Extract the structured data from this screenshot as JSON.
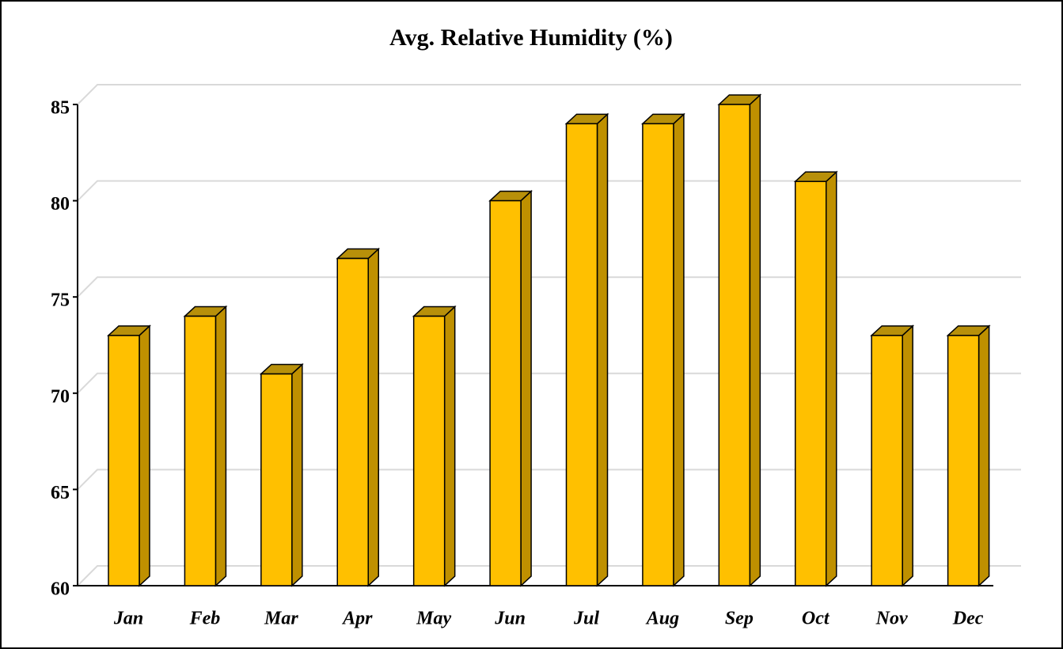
{
  "chart_data": {
    "type": "bar3d",
    "title": "Avg. Relative Humidity (%)",
    "categories": [
      "Jan",
      "Feb",
      "Mar",
      "Apr",
      "May",
      "Jun",
      "Jul",
      "Aug",
      "Sep",
      "Oct",
      "Nov",
      "Dec"
    ],
    "values": [
      73,
      74,
      71,
      77,
      74,
      80,
      84,
      84,
      85,
      81,
      73,
      73
    ],
    "color": "#ffc000",
    "ylim": [
      60,
      85
    ],
    "yticks": [
      60,
      65,
      70,
      75,
      80,
      85
    ],
    "grid": true
  }
}
